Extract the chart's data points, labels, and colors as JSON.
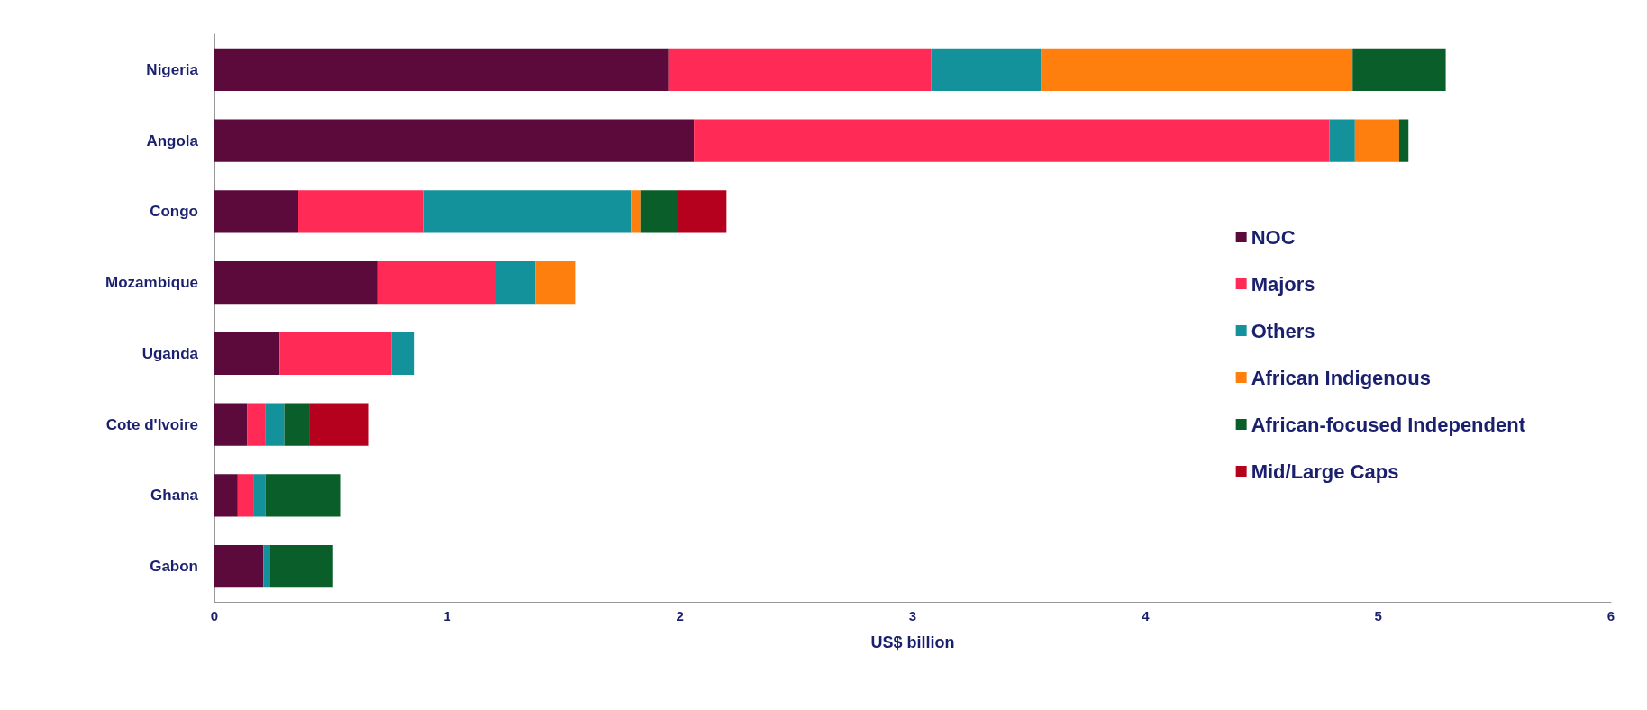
{
  "chart_data": {
    "type": "bar",
    "orientation": "horizontal",
    "stacked": true,
    "xlabel": "US$ billion",
    "categories": [
      "Nigeria",
      "Angola",
      "Congo",
      "Mozambique",
      "Uganda",
      "Cote d'Ivoire",
      "Ghana",
      "Gabon"
    ],
    "series": [
      {
        "name": "NOC",
        "color": "#5c0a3c",
        "values": [
          1.95,
          2.06,
          0.36,
          0.7,
          0.28,
          0.14,
          0.1,
          0.21
        ]
      },
      {
        "name": "Majors",
        "color": "#ff2a55",
        "values": [
          1.13,
          2.73,
          0.54,
          0.51,
          0.48,
          0.08,
          0.07,
          0
        ]
      },
      {
        "name": "Others",
        "color": "#14929c",
        "values": [
          0.47,
          0.11,
          0.89,
          0.17,
          0.1,
          0.08,
          0.05,
          0.03
        ]
      },
      {
        "name": "African Indigenous",
        "color": "#ff7f0e",
        "values": [
          1.34,
          0.19,
          0.04,
          0.17,
          0,
          0,
          0,
          0
        ]
      },
      {
        "name": "African-focused Independent",
        "color": "#0a5e2a",
        "values": [
          0.4,
          0.04,
          0.16,
          0,
          0,
          0.11,
          0.32,
          0.27
        ]
      },
      {
        "name": "Mid/Large Caps",
        "color": "#b5001e",
        "values": [
          0,
          0,
          0.21,
          0,
          0,
          0.25,
          0,
          0
        ]
      }
    ],
    "xlim": [
      0,
      6
    ],
    "xticks": [
      0,
      1,
      2,
      3,
      4,
      5,
      6
    ],
    "grid": false,
    "legend": "right"
  }
}
